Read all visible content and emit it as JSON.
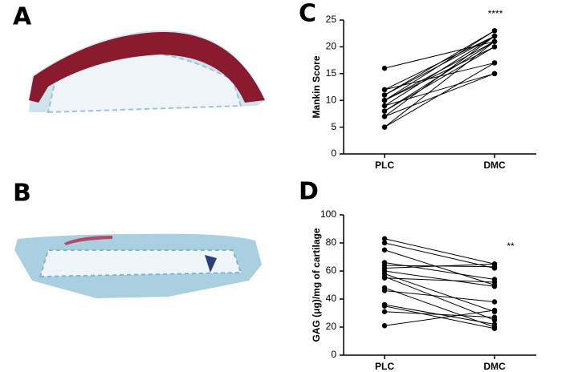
{
  "images": [
    {
      "label": "A"
    },
    {
      "label": "B"
    }
  ],
  "chart_data": [
    {
      "type": "paired-line",
      "panel_label": "C",
      "y_label": "Mankin Score",
      "annotation": "****",
      "color": "#000000",
      "categories": [
        "PLC",
        "DMC"
      ],
      "ylim": [
        0,
        25
      ],
      "yticks": [
        0,
        5,
        10,
        15,
        20,
        25
      ],
      "series": [
        {
          "values": [
            16,
            21
          ]
        },
        {
          "values": [
            12,
            22
          ]
        },
        {
          "values": [
            12,
            17
          ]
        },
        {
          "values": [
            11,
            23
          ]
        },
        {
          "values": [
            11,
            22
          ]
        },
        {
          "values": [
            10,
            21
          ]
        },
        {
          "values": [
            10,
            20
          ]
        },
        {
          "values": [
            9,
            22
          ]
        },
        {
          "values": [
            9,
            15
          ]
        },
        {
          "values": [
            8,
            21
          ]
        },
        {
          "values": [
            8,
            20
          ]
        },
        {
          "values": [
            7,
            22
          ]
        },
        {
          "values": [
            7,
            15
          ]
        },
        {
          "values": [
            5,
            17
          ]
        },
        {
          "values": [
            5,
            21
          ]
        },
        {
          "values": [
            10,
            23
          ]
        }
      ]
    },
    {
      "type": "paired-line",
      "panel_label": "D",
      "y_label": "GAG (μg)/mg of cartilage",
      "annotation": "**",
      "color": "#000000",
      "categories": [
        "PLC",
        "DMC"
      ],
      "ylim": [
        0,
        100
      ],
      "yticks": [
        0,
        20,
        40,
        60,
        80,
        100
      ],
      "series": [
        {
          "values": [
            83,
            65
          ]
        },
        {
          "values": [
            80,
            62
          ]
        },
        {
          "values": [
            75,
            50
          ]
        },
        {
          "values": [
            66,
            54
          ]
        },
        {
          "values": [
            64,
            63
          ]
        },
        {
          "values": [
            62,
            65
          ]
        },
        {
          "values": [
            60,
            49
          ]
        },
        {
          "values": [
            58,
            31
          ]
        },
        {
          "values": [
            56,
            25
          ]
        },
        {
          "values": [
            55,
            52
          ]
        },
        {
          "values": [
            48,
            20
          ]
        },
        {
          "values": [
            46,
            38
          ]
        },
        {
          "values": [
            36,
            22
          ]
        },
        {
          "values": [
            35,
            19
          ]
        },
        {
          "values": [
            31,
            27
          ]
        },
        {
          "values": [
            21,
            32
          ]
        }
      ]
    }
  ]
}
